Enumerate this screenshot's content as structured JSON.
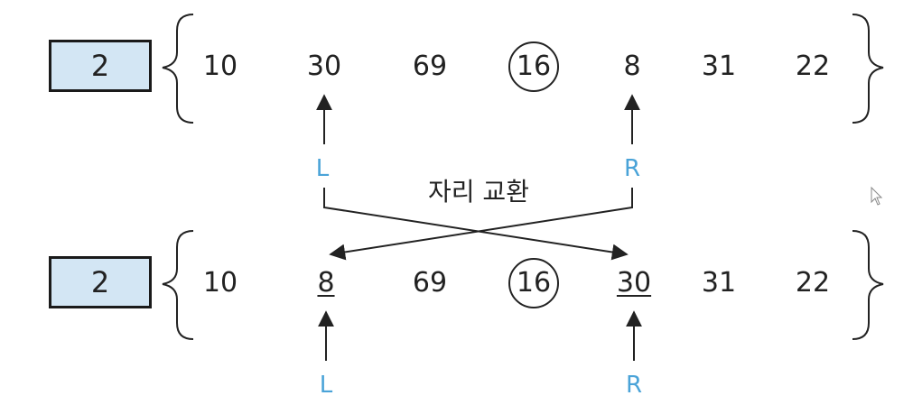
{
  "rows": [
    {
      "step": "2",
      "values": [
        "10",
        "30",
        "69",
        "16",
        "8",
        "31",
        "22"
      ],
      "pivot_index": 3,
      "underlined": []
    },
    {
      "step": "2",
      "values": [
        "10",
        "8",
        "69",
        "16",
        "30",
        "31",
        "22"
      ],
      "pivot_index": 3,
      "underlined": [
        1,
        4
      ]
    }
  ],
  "pointers": {
    "left": "L",
    "right": "R"
  },
  "swap_label": "자리 교환",
  "colors": {
    "step_box_fill": "#d3e6f4",
    "pointer_label": "#4aa3d8",
    "line": "#222222"
  },
  "cursor_icon": "mouse-pointer-icon"
}
